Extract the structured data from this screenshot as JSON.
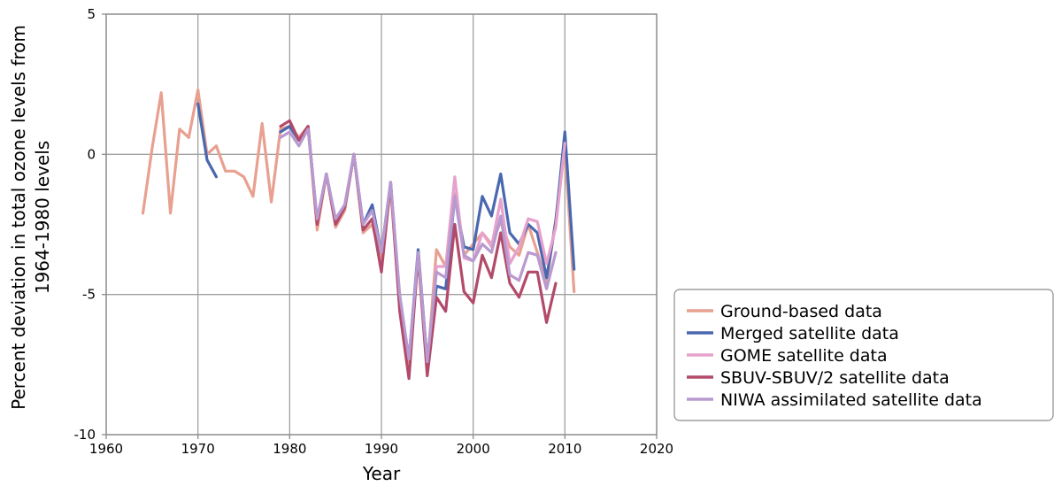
{
  "chart_data": {
    "type": "line",
    "title": "",
    "xlabel": "Year",
    "ylabel_lines": [
      "Percent deviation in total ozone levels from",
      "1964-1980 levels"
    ],
    "xlim": [
      1960,
      2020
    ],
    "ylim": [
      -10,
      5
    ],
    "x_ticks": [
      1960,
      1970,
      1980,
      1990,
      2000,
      2010,
      2020
    ],
    "y_ticks": [
      5,
      0,
      -5,
      -10
    ],
    "grid": true,
    "legend_position": "lower-right-outside",
    "series": [
      {
        "name": "Ground-based data",
        "color": "#e8a090",
        "x": [
          1964,
          1965,
          1966,
          1967,
          1968,
          1969,
          1970,
          1971,
          1972,
          1973,
          1974,
          1975,
          1976,
          1977,
          1978,
          1979,
          1980,
          1981,
          1982,
          1983,
          1984,
          1985,
          1986,
          1987,
          1988,
          1989,
          1990,
          1991,
          1992,
          1993,
          1994,
          1995,
          1996,
          1997,
          1998,
          1999,
          2000,
          2001,
          2002,
          2003,
          2004,
          2005,
          2006,
          2007,
          2008,
          2009,
          2010,
          2011
        ],
        "y": [
          -2.1,
          0.2,
          2.2,
          -2.1,
          0.9,
          0.6,
          2.3,
          0.0,
          0.3,
          -0.6,
          -0.6,
          -0.8,
          -1.5,
          1.1,
          -1.7,
          0.9,
          1.0,
          0.6,
          1.0,
          -2.7,
          -0.7,
          -2.6,
          -2.0,
          0.0,
          -2.8,
          -2.5,
          -3.8,
          -1.2,
          -5.5,
          -7.4,
          -3.6,
          -7.6,
          -3.4,
          -4.0,
          -1.4,
          -3.6,
          -3.2,
          -2.8,
          -3.2,
          -2.4,
          -3.3,
          -3.6,
          -2.5,
          -3.5,
          -4.6,
          -2.3,
          0.2,
          -4.9
        ]
      },
      {
        "name": "Merged satellite data",
        "color": "#4a68b0",
        "x": [
          1970,
          1971,
          1972,
          null,
          1979,
          1980,
          1981,
          1982,
          1983,
          1984,
          1985,
          1986,
          1987,
          1988,
          1989,
          1990,
          1991,
          1992,
          1993,
          1994,
          1995,
          1996,
          1997,
          1998,
          1999,
          2000,
          2001,
          2002,
          2003,
          2004,
          2005,
          2006,
          2007,
          2008,
          2009,
          2010,
          2011
        ],
        "y": [
          1.8,
          -0.2,
          -0.8,
          null,
          0.8,
          1.0,
          0.5,
          1.0,
          -2.4,
          -0.7,
          -2.4,
          -1.9,
          0.0,
          -2.5,
          -1.8,
          -3.5,
          -1.0,
          -5.2,
          -7.3,
          -3.4,
          -7.4,
          -4.7,
          -4.8,
          -1.5,
          -3.3,
          -3.4,
          -1.5,
          -2.2,
          -0.7,
          -2.8,
          -3.2,
          -2.5,
          -2.8,
          -4.4,
          -2.4,
          0.8,
          -4.1
        ]
      },
      {
        "name": "GOME satellite data",
        "color": "#e6a2cc",
        "x": [
          1995,
          1996,
          1997,
          1998,
          1999,
          2000,
          2001,
          2002,
          2003,
          2004,
          2005,
          2006,
          2007,
          2008,
          2009,
          2010
        ],
        "y": [
          -7.8,
          -4.0,
          -4.0,
          -0.8,
          -3.7,
          -3.8,
          -2.8,
          -3.3,
          -1.6,
          -3.9,
          -3.3,
          -2.3,
          -2.4,
          -3.9,
          -2.6,
          0.4
        ]
      },
      {
        "name": "SBUV-SBUV/2 satellite data",
        "color": "#b24a6a",
        "x": [
          1979,
          1980,
          1981,
          1982,
          1983,
          1984,
          1985,
          1986,
          1987,
          1988,
          1989,
          1990,
          1991,
          1992,
          1993,
          1994,
          1995,
          1996,
          1997,
          1998,
          1999,
          2000,
          2001,
          2002,
          2003,
          2004,
          2005,
          2006,
          2007,
          2008,
          2009
        ],
        "y": [
          1.0,
          1.2,
          0.5,
          1.0,
          -2.5,
          -0.7,
          -2.5,
          -1.9,
          0.0,
          -2.7,
          -2.3,
          -4.2,
          -1.0,
          -5.6,
          -8.0,
          -3.6,
          -7.9,
          -5.1,
          -5.6,
          -2.5,
          -4.9,
          -5.3,
          -3.6,
          -4.4,
          -2.8,
          -4.6,
          -5.1,
          -4.2,
          -4.2,
          -6.0,
          -4.6
        ]
      },
      {
        "name": "NIWA assimilated satellite data",
        "color": "#b89ad0",
        "x": [
          1979,
          1980,
          1981,
          1982,
          1983,
          1984,
          1985,
          1986,
          1987,
          1988,
          1989,
          1990,
          1991,
          1992,
          1993,
          1994,
          1995,
          1996,
          1997,
          1998,
          1999,
          2000,
          2001,
          2002,
          2003,
          2004,
          2005,
          2006,
          2007,
          2008,
          2009
        ],
        "y": [
          0.6,
          0.8,
          0.3,
          0.9,
          -2.3,
          -0.7,
          -2.3,
          -1.8,
          0.0,
          -2.5,
          -2.0,
          -3.5,
          -1.0,
          -5.0,
          -7.3,
          -3.5,
          -7.4,
          -4.2,
          -4.4,
          -1.5,
          -3.6,
          -3.8,
          -3.2,
          -3.5,
          -2.2,
          -4.3,
          -4.5,
          -3.5,
          -3.6,
          -4.8,
          -3.5
        ]
      }
    ]
  }
}
